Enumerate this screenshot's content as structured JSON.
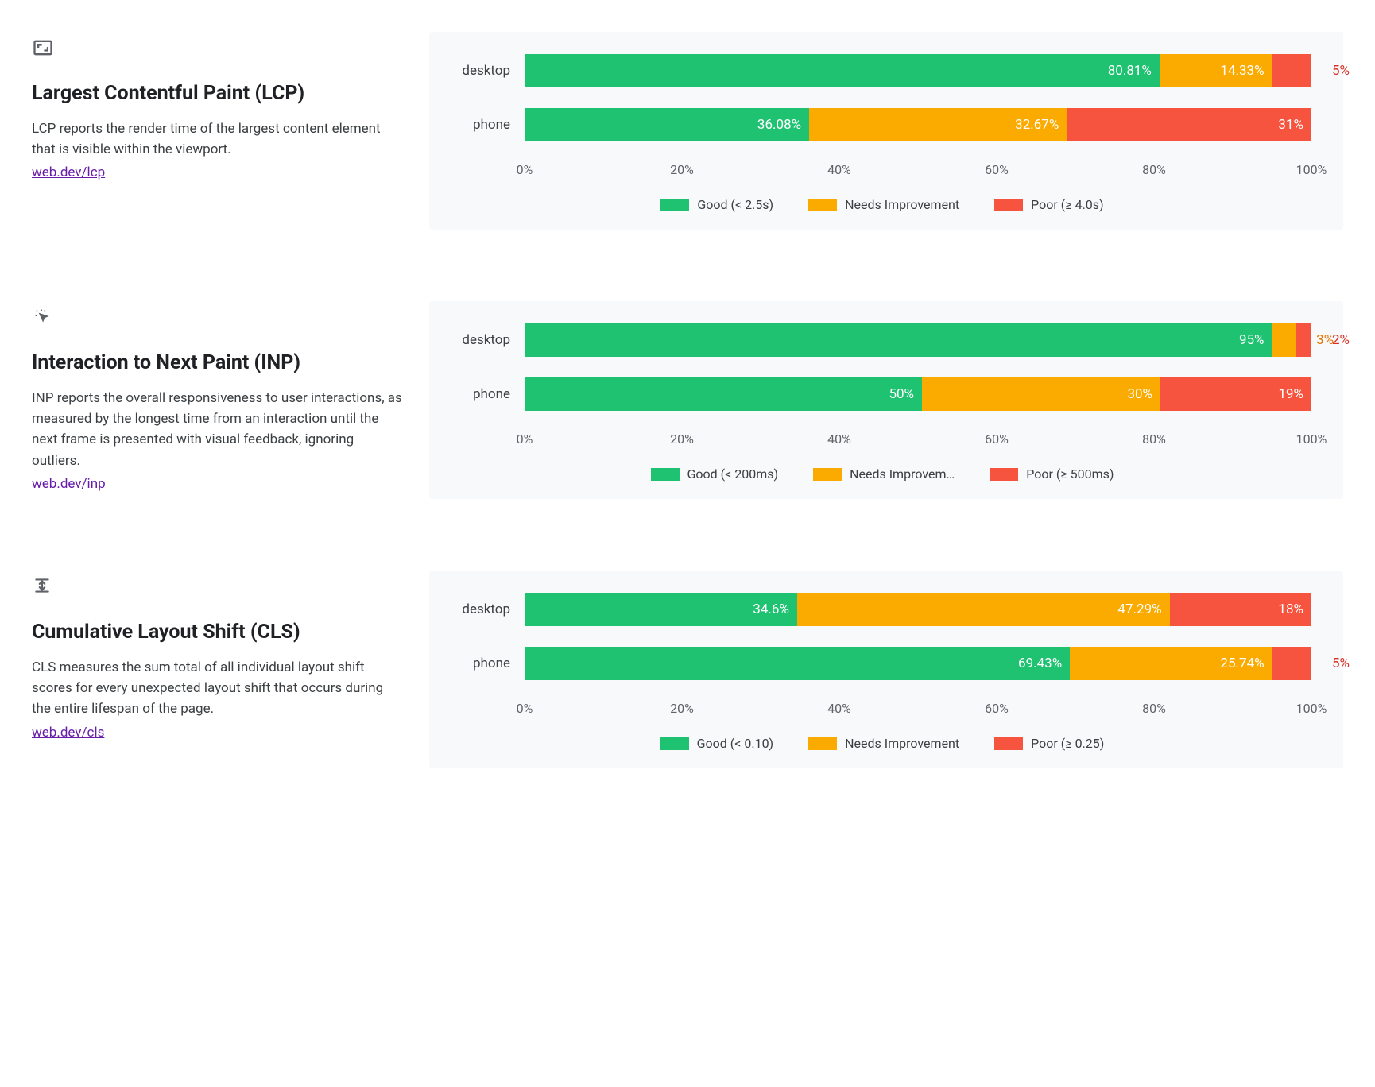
{
  "colors": {
    "good": "#1ec271",
    "needs": "#fbab00",
    "poor": "#f6543f",
    "panel_bg": "#f8f9fa",
    "text": "#3c4043",
    "link": "#681da8"
  },
  "axis": {
    "ticks": [
      "0%",
      "20%",
      "40%",
      "60%",
      "80%",
      "100%"
    ],
    "positions_pct": [
      0,
      20,
      40,
      60,
      80,
      100
    ]
  },
  "metrics": [
    {
      "id": "lcp",
      "icon": "aspect-ratio-icon",
      "title": "Largest Contentful Paint (LCP)",
      "description": "LCP reports the render time of the largest content element that is visible within the viewport.",
      "link_text": "web.dev/lcp",
      "legend": {
        "good": "Good (< 2.5s)",
        "needs": "Needs Improvement",
        "poor": "Poor (≥ 4.0s)"
      },
      "rows": [
        {
          "label": "desktop",
          "good": 80.81,
          "needs": 14.33,
          "poor": 5,
          "good_label": "80.81%",
          "needs_label": "14.33%",
          "poor_label": "5%",
          "poor_outside": true
        },
        {
          "label": "phone",
          "good": 36.08,
          "needs": 32.67,
          "poor": 31,
          "good_label": "36.08%",
          "needs_label": "32.67%",
          "poor_label": "31%",
          "poor_outside": false
        }
      ]
    },
    {
      "id": "inp",
      "icon": "cursor-click-icon",
      "title": "Interaction to Next Paint (INP)",
      "description": "INP reports the overall responsiveness to user interactions, as measured by the longest time from an interaction until the next frame is presented with visual feedback, ignoring outliers.",
      "link_text": "web.dev/inp",
      "legend": {
        "good": "Good (< 200ms)",
        "needs": "Needs Improvem…",
        "poor": "Poor (≥ 500ms)"
      },
      "rows": [
        {
          "label": "desktop",
          "good": 95,
          "needs": 3,
          "poor": 2,
          "good_label": "95%",
          "needs_label": "3%",
          "poor_label": "2%",
          "needs_outside": true,
          "poor_outside": true
        },
        {
          "label": "phone",
          "good": 50,
          "needs": 30,
          "poor": 19,
          "good_label": "50%",
          "needs_label": "30%",
          "poor_label": "19%",
          "poor_outside": false
        }
      ]
    },
    {
      "id": "cls",
      "icon": "layout-shift-icon",
      "title": "Cumulative Layout Shift (CLS)",
      "description": "CLS measures the sum total of all individual layout shift scores for every unexpected layout shift that occurs during the entire lifespan of the page.",
      "link_text": "web.dev/cls",
      "legend": {
        "good": "Good (< 0.10)",
        "needs": "Needs Improvement",
        "poor": "Poor (≥ 0.25)"
      },
      "rows": [
        {
          "label": "desktop",
          "good": 34.6,
          "needs": 47.29,
          "poor": 18,
          "good_label": "34.6%",
          "needs_label": "47.29%",
          "poor_label": "18%",
          "poor_outside": false
        },
        {
          "label": "phone",
          "good": 69.43,
          "needs": 25.74,
          "poor": 5,
          "good_label": "69.43%",
          "needs_label": "25.74%",
          "poor_label": "5%",
          "poor_outside": true
        }
      ]
    }
  ]
}
